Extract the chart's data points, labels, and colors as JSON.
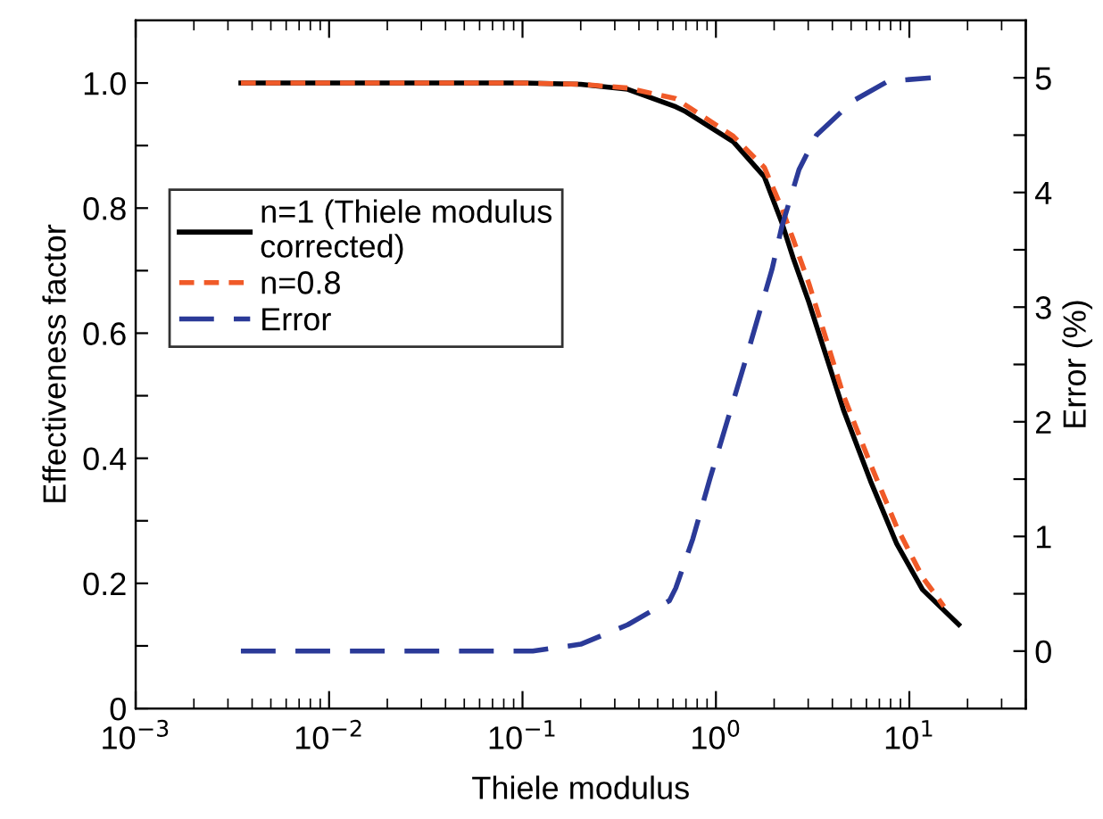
{
  "chart_data": {
    "type": "line",
    "xlabel": "Thiele modulus",
    "ylabel": "Effectiveness factor",
    "y2label": "Error (%)",
    "log": "x",
    "xlim": [
      0.001,
      40
    ],
    "xticks": [
      {
        "value": 0.001,
        "label": "10$^{−3}$"
      },
      {
        "value": 0.01,
        "label": "10$^{−2}$"
      },
      {
        "value": 0.1,
        "label": "10$^{−1}$"
      },
      {
        "value": 1,
        "label": "10$^{0}$"
      },
      {
        "value": 10,
        "label": "10$^{1}$"
      }
    ],
    "ylim": [
      0,
      1.1
    ],
    "yticks": [
      0,
      {
        "value": 0.1,
        "label": null
      },
      0.2,
      {
        "value": 0.3,
        "label": null
      },
      0.4,
      {
        "value": 0.5,
        "label": null
      },
      0.6,
      {
        "value": 0.7,
        "label": null
      },
      0.8,
      {
        "value": 0.9,
        "label": null
      },
      {
        "value": 1,
        "label": "1.0"
      }
    ],
    "y2lim": [
      -0.5,
      5.5
    ],
    "y2ticks": [
      0,
      {
        "value": 0.5,
        "label": null
      },
      1,
      {
        "value": 1.5,
        "label": null
      },
      2,
      {
        "value": 2.5,
        "label": null
      },
      3,
      {
        "value": 3.5,
        "label": null
      },
      4,
      {
        "value": 4.5,
        "label": null
      },
      5
    ],
    "grid": false,
    "legend": "left",
    "marker": "none",
    "series": [
      {
        "name": "n=1 (Thiele modulus\ncorrected)",
        "color": "#000000",
        "line_style": "solid",
        "x": [
          0.0035,
          0.03,
          0.1,
          0.2,
          0.35,
          0.62,
          0.7,
          1.23,
          1.78,
          2.19,
          2.51,
          3.02,
          3.72,
          4.57,
          6.31,
          8.61,
          11.7,
          18.0
        ],
        "values": [
          1.0,
          1.0,
          1.0,
          0.998,
          0.99,
          0.962,
          0.954,
          0.906,
          0.85,
          0.777,
          0.72,
          0.65,
          0.563,
          0.477,
          0.363,
          0.263,
          0.19,
          0.134
        ]
      },
      {
        "name": "n=0.8",
        "color": "#f05a28",
        "line_style": "dashed",
        "x": [
          0.0035,
          0.03,
          0.1,
          0.2,
          0.35,
          0.62,
          1.23,
          1.78,
          2.19,
          2.51,
          3.02,
          3.72,
          4.57,
          6.31,
          8.61,
          11.7,
          15.1
        ],
        "values": [
          1.0,
          1.0,
          1.0,
          0.998,
          0.992,
          0.975,
          0.915,
          0.865,
          0.8,
          0.75,
          0.68,
          0.59,
          0.5,
          0.39,
          0.29,
          0.21,
          0.163
        ]
      },
      {
        "name": "Error",
        "color": "#2b3a98",
        "line_style": "dashed",
        "axis": "y2",
        "x": [
          0.0035,
          0.03,
          0.113,
          0.2,
          0.35,
          0.575,
          0.62,
          0.76,
          0.93,
          1.43,
          1.95,
          2.19,
          2.69,
          3.31,
          5.13,
          7.76,
          12.9
        ],
        "values": [
          0,
          0,
          0,
          0.06,
          0.23,
          0.44,
          0.55,
          0.98,
          1.5,
          2.55,
          3.33,
          3.7,
          4.2,
          4.5,
          4.8,
          4.97,
          5.0
        ]
      }
    ]
  }
}
